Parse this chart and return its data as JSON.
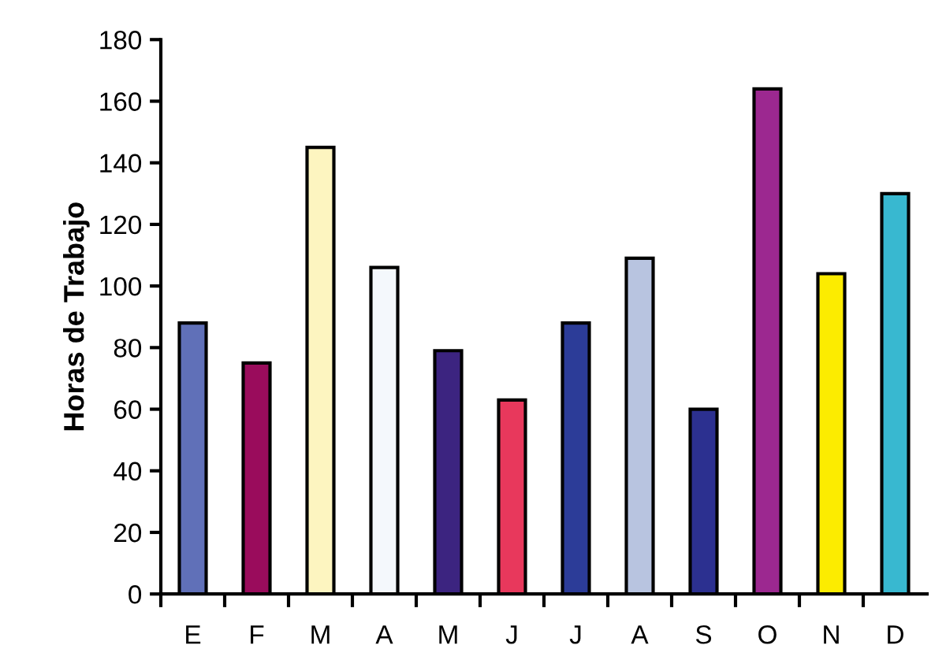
{
  "chart_data": {
    "type": "bar",
    "ylabel": "Horas de Trabajo",
    "categories": [
      "E",
      "F",
      "M",
      "A",
      "M",
      "J",
      "J",
      "A",
      "S",
      "O",
      "N",
      "D"
    ],
    "values": [
      88,
      75,
      145,
      106,
      79,
      63,
      88,
      109,
      60,
      164,
      104,
      130
    ],
    "colors": [
      "#6070b8",
      "#9a0c5c",
      "#fdf5c0",
      "#f4f8fc",
      "#3c2480",
      "#e8385c",
      "#2c3c98",
      "#b8c4e0",
      "#2c3090",
      "#9c2890",
      "#fcec00",
      "#38b8d0"
    ],
    "ylim": [
      0,
      180
    ],
    "yticks": [
      0,
      20,
      40,
      60,
      80,
      100,
      120,
      140,
      160,
      180
    ],
    "grid": false
  }
}
